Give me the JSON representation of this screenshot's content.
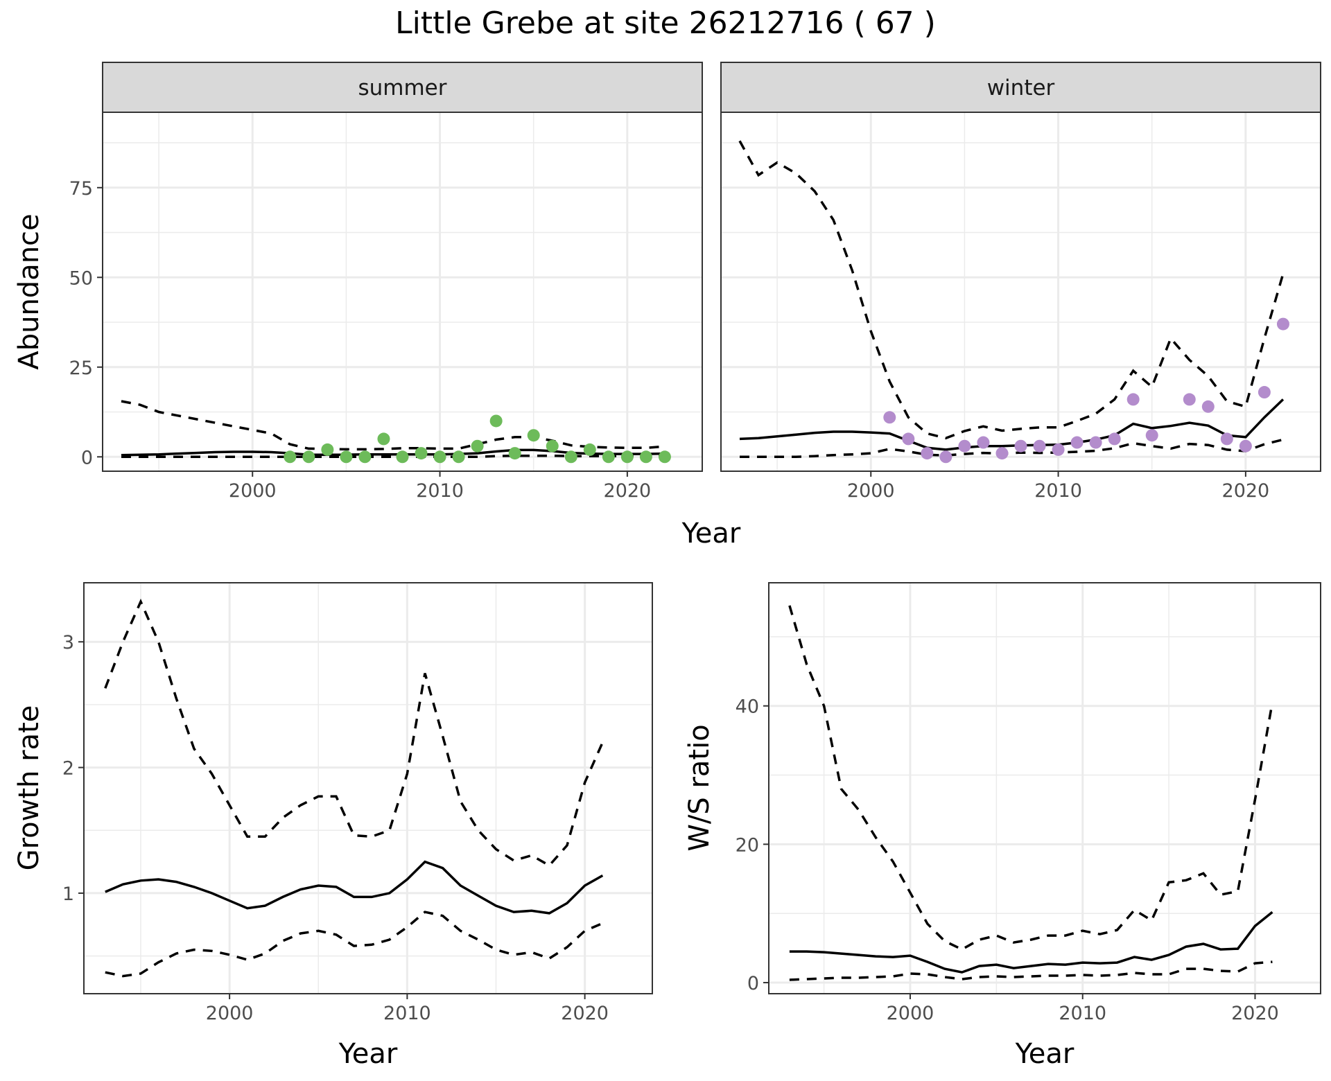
{
  "title": "Little Grebe at site 26212716 ( 67 )",
  "colors": {
    "summer_points": "#6dbb5a",
    "winter_points": "#b38ccc",
    "lines": "#000000",
    "strip": "#d9d9d9",
    "grid": "#ebebeb"
  },
  "chart_data": [
    {
      "type": "line",
      "facet": "summer",
      "strip_label": "summer",
      "xlabel": "Year",
      "ylabel": "Abundance",
      "xlim": [
        1992,
        2024
      ],
      "ylim": [
        -4,
        96
      ],
      "x_ticks": [
        2000,
        2010,
        2020
      ],
      "x_tick_labels": [
        "2000",
        "2010",
        "2020"
      ],
      "y_ticks": [
        0,
        25,
        50,
        75
      ],
      "y_tick_labels": [
        "0",
        "25",
        "50",
        "75"
      ],
      "grid": true,
      "lines": {
        "x": [
          1993,
          1994,
          1995,
          1996,
          1997,
          1998,
          1999,
          2000,
          2001,
          2002,
          2003,
          2004,
          2005,
          2006,
          2007,
          2008,
          2009,
          2010,
          2011,
          2012,
          2013,
          2014,
          2015,
          2016,
          2017,
          2018,
          2019,
          2020,
          2021,
          2022
        ],
        "estimate": [
          0.5,
          0.6,
          0.7,
          0.9,
          1.1,
          1.3,
          1.4,
          1.4,
          1.3,
          1.0,
          0.6,
          0.6,
          0.6,
          0.7,
          0.7,
          0.7,
          0.7,
          0.7,
          0.8,
          1.0,
          1.5,
          1.9,
          1.9,
          1.6,
          1.1,
          0.9,
          0.8,
          0.8,
          0.8,
          0.9
        ],
        "lower": [
          0,
          0,
          0,
          0,
          0,
          0,
          0,
          0,
          0,
          0,
          0,
          0,
          0,
          0,
          0,
          0,
          0,
          0,
          0,
          0,
          0.2,
          0.3,
          0.3,
          0.3,
          0.2,
          0.2,
          0.2,
          0.2,
          0.2,
          0.2
        ],
        "upper": [
          15.5,
          14.5,
          12.5,
          11.5,
          10.5,
          9.5,
          8.5,
          7.5,
          6.5,
          3.5,
          2.3,
          2.2,
          2.1,
          2.1,
          2.2,
          2.4,
          2.4,
          2.3,
          2.3,
          3.5,
          4.8,
          5.5,
          5.5,
          4.5,
          3.2,
          2.8,
          2.6,
          2.5,
          2.5,
          2.9
        ]
      },
      "points": {
        "x": [
          2002,
          2003,
          2004,
          2005,
          2006,
          2007,
          2008,
          2009,
          2010,
          2011,
          2012,
          2013,
          2014,
          2015,
          2016,
          2017,
          2018,
          2019,
          2020,
          2021,
          2022
        ],
        "y": [
          0,
          0,
          2,
          0,
          0,
          5,
          0,
          1,
          0,
          0,
          3,
          10,
          1,
          6,
          3,
          0,
          2,
          0,
          0,
          0,
          0
        ]
      }
    },
    {
      "type": "line",
      "facet": "winter",
      "strip_label": "winter",
      "xlabel": "Year",
      "ylabel": "Abundance",
      "xlim": [
        1992,
        2024
      ],
      "ylim": [
        -4,
        96
      ],
      "x_ticks": [
        2000,
        2010,
        2020
      ],
      "x_tick_labels": [
        "2000",
        "2010",
        "2020"
      ],
      "y_ticks": [
        0,
        25,
        50,
        75
      ],
      "grid": true,
      "lines": {
        "x": [
          1993,
          1994,
          1995,
          1996,
          1997,
          1998,
          1999,
          2000,
          2001,
          2002,
          2003,
          2004,
          2005,
          2006,
          2007,
          2008,
          2009,
          2010,
          2011,
          2012,
          2013,
          2014,
          2015,
          2016,
          2017,
          2018,
          2019,
          2020,
          2021,
          2022
        ],
        "estimate": [
          5.0,
          5.2,
          5.7,
          6.2,
          6.7,
          7.0,
          7.0,
          6.8,
          6.5,
          4.5,
          2.5,
          2.0,
          2.6,
          3.0,
          3.0,
          3.2,
          3.3,
          3.4,
          4.0,
          4.8,
          6.0,
          9.2,
          8.0,
          8.6,
          9.5,
          8.7,
          6.0,
          5.5,
          11.0,
          16.0
        ],
        "lower": [
          0,
          0,
          0,
          0,
          0.2,
          0.5,
          0.7,
          1.0,
          2.2,
          1.5,
          0.6,
          0.4,
          0.8,
          1.1,
          0.9,
          1.2,
          1.1,
          1.2,
          1.4,
          1.7,
          2.4,
          3.8,
          3.0,
          2.3,
          3.6,
          3.3,
          2.0,
          1.6,
          3.5,
          4.8
        ],
        "upper": [
          88,
          78.5,
          82,
          79,
          74,
          66,
          52,
          35,
          21,
          11,
          6.5,
          5.2,
          7.2,
          8.5,
          7.3,
          7.8,
          8.2,
          8.2,
          10,
          12,
          16,
          24,
          19.5,
          33,
          27,
          22.5,
          15.5,
          14,
          33,
          51
        ]
      },
      "points": {
        "x": [
          2001,
          2002,
          2003,
          2004,
          2005,
          2006,
          2007,
          2008,
          2009,
          2010,
          2011,
          2012,
          2013,
          2014,
          2015,
          2017,
          2018,
          2019,
          2020,
          2021,
          2022
        ],
        "y": [
          11,
          5,
          1,
          0,
          3,
          4,
          1,
          3,
          3,
          2,
          4,
          4,
          5,
          16,
          6,
          16,
          14,
          5,
          3,
          18,
          37
        ]
      }
    },
    {
      "type": "line",
      "facet": "growth",
      "xlabel": "Year",
      "ylabel": "Growth rate",
      "xlim": [
        1991.8,
        2023.8
      ],
      "ylim": [
        0.2,
        3.47
      ],
      "x_ticks": [
        2000,
        2010,
        2020
      ],
      "x_tick_labels": [
        "2000",
        "2010",
        "2020"
      ],
      "y_ticks": [
        1,
        2,
        3
      ],
      "y_tick_labels": [
        "1",
        "2",
        "3"
      ],
      "grid": true,
      "lines": {
        "x": [
          1993,
          1994,
          1995,
          1996,
          1997,
          1998,
          1999,
          2000,
          2001,
          2002,
          2003,
          2004,
          2005,
          2006,
          2007,
          2008,
          2009,
          2010,
          2011,
          2012,
          2013,
          2014,
          2015,
          2016,
          2017,
          2018,
          2019,
          2020,
          2021
        ],
        "estimate": [
          1.01,
          1.07,
          1.1,
          1.11,
          1.09,
          1.05,
          1.0,
          0.94,
          0.88,
          0.9,
          0.97,
          1.03,
          1.06,
          1.05,
          0.97,
          0.97,
          1.0,
          1.11,
          1.25,
          1.2,
          1.06,
          0.98,
          0.9,
          0.85,
          0.86,
          0.84,
          0.92,
          1.06,
          1.14
        ],
        "lower": [
          0.37,
          0.34,
          0.36,
          0.45,
          0.52,
          0.55,
          0.54,
          0.51,
          0.47,
          0.52,
          0.62,
          0.68,
          0.7,
          0.67,
          0.58,
          0.59,
          0.63,
          0.73,
          0.85,
          0.82,
          0.7,
          0.63,
          0.55,
          0.51,
          0.53,
          0.48,
          0.57,
          0.7,
          0.76
        ],
        "upper": [
          2.63,
          3.0,
          3.32,
          3.0,
          2.55,
          2.15,
          1.95,
          1.7,
          1.45,
          1.45,
          1.6,
          1.7,
          1.77,
          1.77,
          1.46,
          1.45,
          1.5,
          1.95,
          2.75,
          2.25,
          1.73,
          1.5,
          1.35,
          1.26,
          1.3,
          1.22,
          1.38,
          1.88,
          2.2
        ]
      }
    },
    {
      "type": "line",
      "facet": "ratio",
      "xlabel": "Year",
      "ylabel": "W/S ratio",
      "xlim": [
        1991.8,
        2023.8
      ],
      "ylim": [
        -1.6,
        57.8
      ],
      "x_ticks": [
        2000,
        2010,
        2020
      ],
      "x_tick_labels": [
        "2000",
        "2010",
        "2020"
      ],
      "y_ticks": [
        0,
        20,
        40
      ],
      "y_tick_labels": [
        "0",
        "20",
        "40"
      ],
      "grid": true,
      "lines": {
        "x": [
          1993,
          1994,
          1995,
          1996,
          1997,
          1998,
          1999,
          2000,
          2001,
          2002,
          2003,
          2004,
          2005,
          2006,
          2007,
          2008,
          2009,
          2010,
          2011,
          2012,
          2013,
          2014,
          2015,
          2016,
          2017,
          2018,
          2019,
          2020,
          2021
        ],
        "estimate": [
          4.5,
          4.5,
          4.4,
          4.2,
          4.0,
          3.8,
          3.7,
          3.9,
          3.0,
          2.0,
          1.5,
          2.4,
          2.6,
          2.1,
          2.4,
          2.7,
          2.6,
          2.9,
          2.8,
          2.9,
          3.7,
          3.3,
          4.0,
          5.2,
          5.6,
          4.8,
          4.9,
          8.2,
          10.2
        ],
        "lower": [
          0.4,
          0.5,
          0.6,
          0.7,
          0.7,
          0.8,
          0.9,
          1.3,
          1.2,
          0.8,
          0.5,
          0.8,
          0.9,
          0.8,
          0.9,
          1.0,
          1.0,
          1.1,
          1.0,
          1.1,
          1.4,
          1.2,
          1.2,
          2.0,
          2.0,
          1.7,
          1.6,
          2.8,
          3.0
        ],
        "upper": [
          54.5,
          46,
          40,
          28,
          25,
          21,
          17.5,
          13,
          8.5,
          6,
          4.8,
          6.2,
          6.8,
          5.8,
          6.2,
          6.8,
          6.8,
          7.5,
          7,
          7.6,
          10.5,
          9,
          14.5,
          14.8,
          15.8,
          12.7,
          13.2,
          26.5,
          40.5
        ]
      }
    }
  ]
}
